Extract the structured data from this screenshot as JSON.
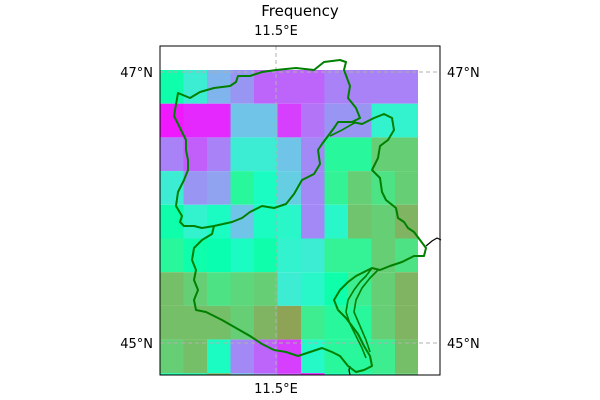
{
  "title": "Frequency",
  "lon_label": "11.5°E",
  "lat_labels": {
    "north": "47°N",
    "south": "45°N"
  },
  "colors": {
    "region_outline": "#008000",
    "coastline": "#000000",
    "gridline": "#b0b0b0",
    "frame": "#000000"
  },
  "colormap": "rainbow",
  "grid": {
    "rows": 10,
    "cols": 11,
    "values": [
      [
        0.47,
        0.62,
        0.75,
        0.8,
        0.87,
        0.87,
        0.87,
        0.83,
        0.83,
        0.83,
        0.83
      ],
      [
        0.97,
        0.95,
        0.95,
        0.72,
        0.72,
        0.92,
        0.85,
        0.8,
        0.8,
        0.6,
        0.6
      ],
      [
        0.83,
        0.88,
        0.83,
        0.62,
        0.62,
        0.72,
        0.82,
        0.42,
        0.42,
        0.3,
        0.3
      ],
      [
        0.62,
        0.8,
        0.78,
        0.42,
        0.55,
        0.7,
        0.82,
        0.4,
        0.3,
        0.35,
        0.3
      ],
      [
        0.47,
        0.6,
        0.55,
        0.72,
        0.55,
        0.58,
        0.82,
        0.58,
        0.28,
        0.3,
        0.25
      ],
      [
        0.42,
        0.47,
        0.48,
        0.55,
        0.47,
        0.6,
        0.62,
        0.4,
        0.4,
        0.3,
        0.35
      ],
      [
        0.27,
        0.3,
        0.35,
        0.32,
        0.3,
        0.62,
        0.58,
        0.47,
        0.38,
        0.3,
        0.25
      ],
      [
        0.27,
        0.27,
        0.27,
        0.3,
        0.25,
        0.22,
        0.38,
        0.42,
        0.42,
        0.3,
        0.25
      ],
      [
        0.3,
        0.27,
        0.55,
        0.82,
        0.87,
        0.92,
        0.57,
        0.42,
        0.42,
        0.38,
        0.27
      ],
      [
        0.47,
        0.47,
        0.25,
        0.72,
        0.8,
        0.9,
        1.0,
        0.48,
        0.45,
        0.42,
        0.3
      ]
    ]
  }
}
